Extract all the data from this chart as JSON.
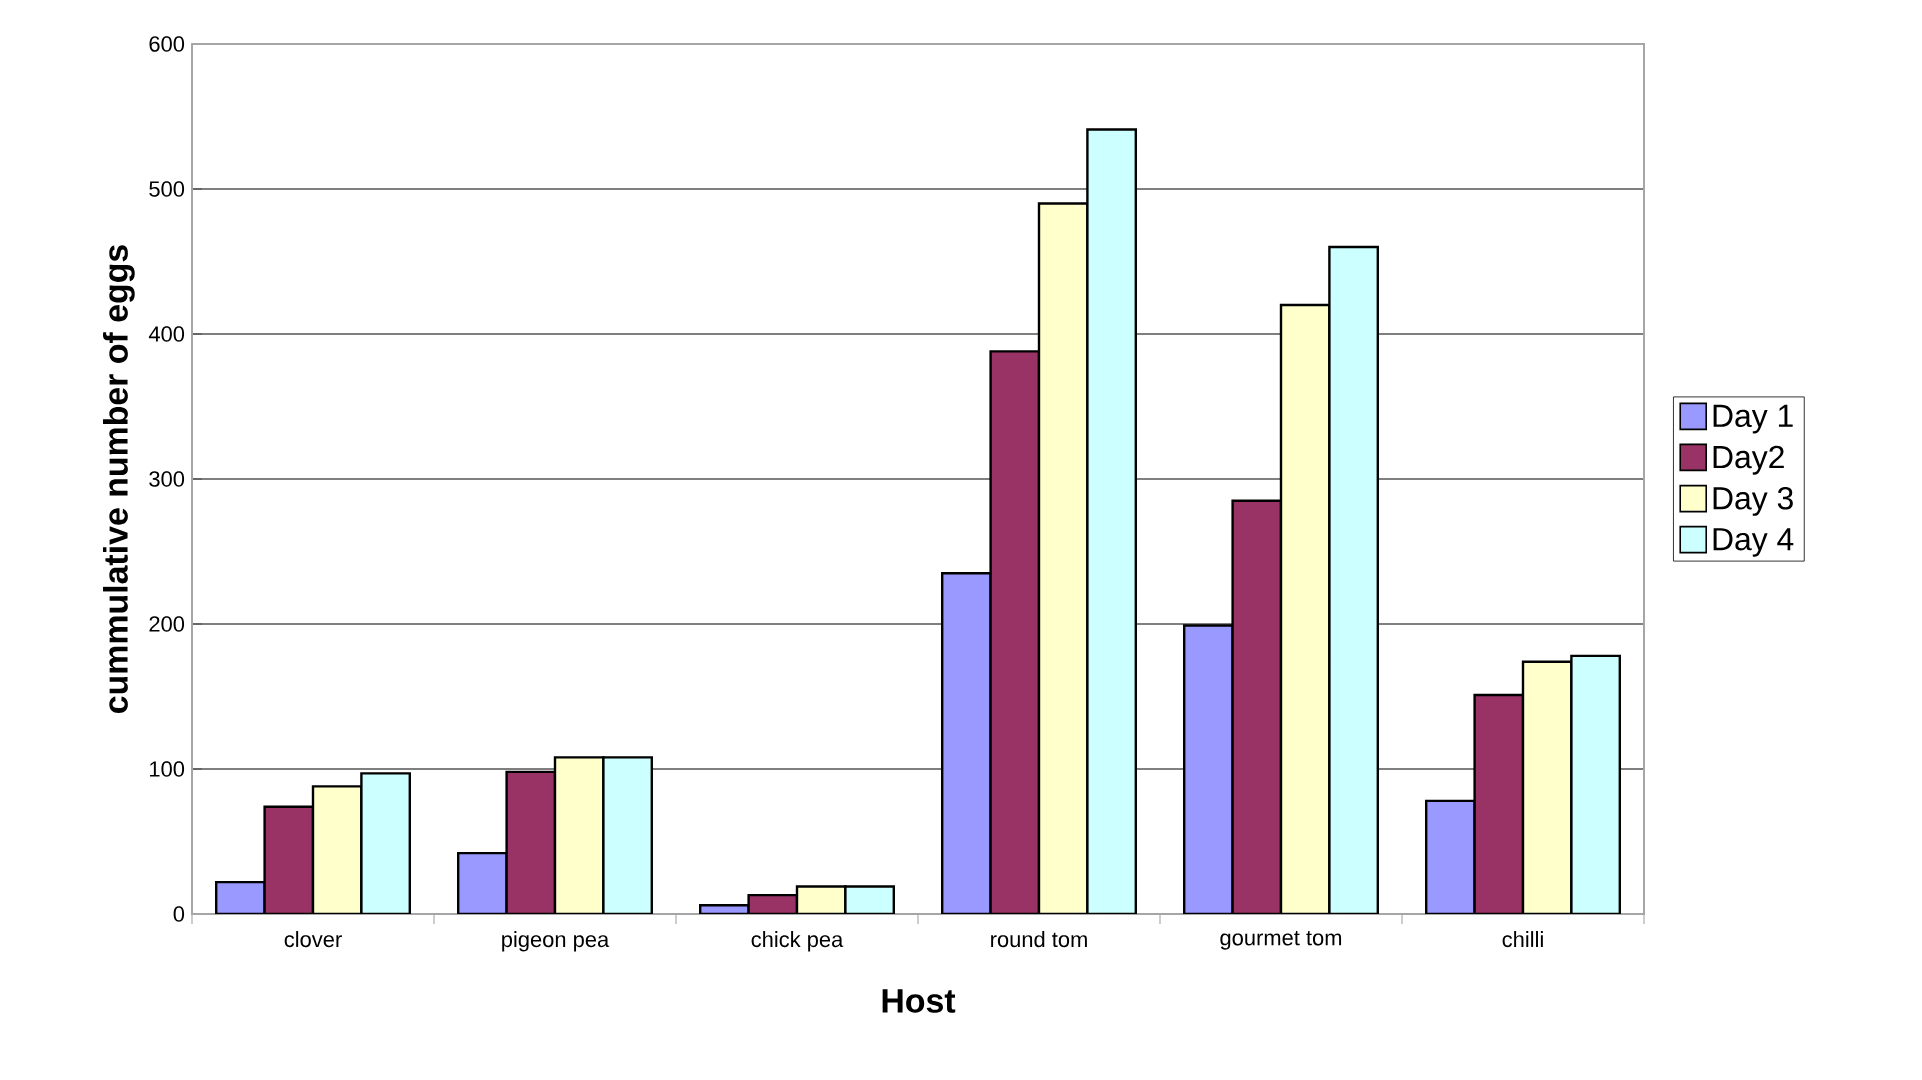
{
  "chart_data": {
    "type": "bar",
    "xlabel": "Host",
    "ylabel": "cummulative number of eggs",
    "categories": [
      "clover",
      "pigeon pea",
      "chick pea",
      "round tom",
      "gourmet tom",
      "chilli"
    ],
    "series": [
      {
        "name": "Day 1",
        "color": "#9999ff",
        "values": [
          22,
          42,
          6,
          235,
          199,
          78
        ]
      },
      {
        "name": "Day2",
        "color": "#993366",
        "values": [
          74,
          98,
          13,
          388,
          285,
          151
        ]
      },
      {
        "name": "Day 3",
        "color": "#ffffcc",
        "values": [
          88,
          108,
          19,
          490,
          420,
          174
        ]
      },
      {
        "name": "Day 4",
        "color": "#ccffff",
        "values": [
          97,
          108,
          19,
          541,
          460,
          178
        ]
      }
    ],
    "ylim": [
      0,
      600
    ],
    "yticks": [
      0,
      100,
      200,
      300,
      400,
      500,
      600
    ],
    "grid": "y",
    "legend": "right"
  }
}
